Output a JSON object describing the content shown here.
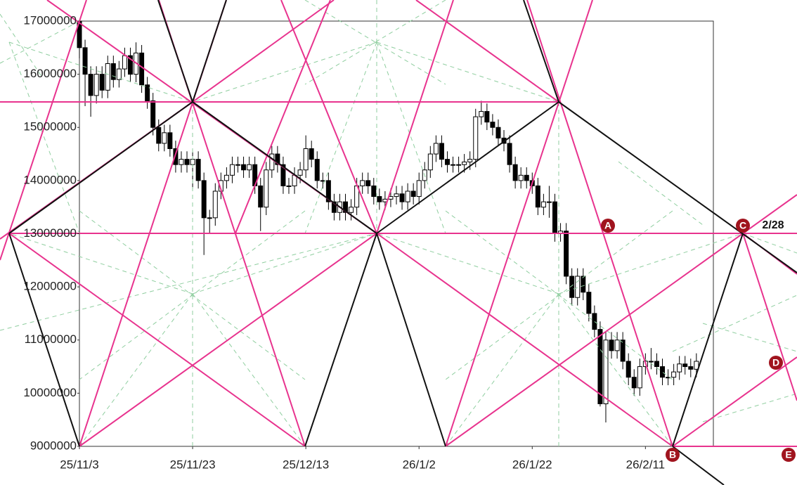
{
  "chart_data": {
    "type": "candlestick",
    "x": [
      "25/11/3",
      "25/11/4",
      "25/11/5",
      "25/11/6",
      "25/11/7",
      "25/11/8",
      "25/11/9",
      "25/11/10",
      "25/11/11",
      "25/11/12",
      "25/11/13",
      "25/11/14",
      "25/11/15",
      "25/11/16",
      "25/11/17",
      "25/11/18",
      "25/11/19",
      "25/11/20",
      "25/11/21",
      "25/11/22",
      "25/11/23",
      "25/11/24",
      "25/11/25",
      "25/11/26",
      "25/11/27",
      "25/11/28",
      "25/11/29",
      "25/11/30",
      "25/12/1",
      "25/12/2",
      "25/12/3",
      "25/12/4",
      "25/12/5",
      "25/12/6",
      "25/12/7",
      "25/12/8",
      "25/12/9",
      "25/12/10",
      "25/12/11",
      "25/12/12",
      "25/12/13",
      "25/12/14",
      "25/12/15",
      "25/12/16",
      "25/12/17",
      "25/12/18",
      "25/12/19",
      "25/12/20",
      "25/12/21",
      "25/12/22",
      "25/12/23",
      "25/12/24",
      "25/12/25",
      "25/12/26",
      "25/12/27",
      "25/12/28",
      "25/12/29",
      "25/12/30",
      "25/12/31",
      "26/1/1",
      "26/1/2",
      "26/1/3",
      "26/1/4",
      "26/1/5",
      "26/1/6",
      "26/1/7",
      "26/1/8",
      "26/1/9",
      "26/1/10",
      "26/1/11",
      "26/1/12",
      "26/1/13",
      "26/1/14",
      "26/1/15",
      "26/1/16",
      "26/1/17",
      "26/1/18",
      "26/1/19",
      "26/1/20",
      "26/1/21",
      "26/1/22",
      "26/1/23",
      "26/1/24",
      "26/1/25",
      "26/1/26",
      "26/1/27",
      "26/1/28",
      "26/1/29",
      "26/1/30",
      "26/1/31",
      "26/2/1",
      "26/2/2",
      "26/2/3",
      "26/2/4",
      "26/2/5",
      "26/2/6",
      "26/2/7",
      "26/2/8",
      "26/2/9",
      "26/2/10",
      "26/2/11",
      "26/2/12",
      "26/2/13",
      "26/2/14",
      "26/2/15",
      "26/2/16",
      "26/2/17",
      "26/2/18",
      "26/2/19",
      "26/2/20"
    ],
    "series": [
      {
        "open": [
          17000000,
          16500000,
          16000000,
          15600000,
          16000000,
          15700000,
          16200000,
          15900000,
          16100000,
          16350000,
          16000000,
          16400000,
          15800000,
          15500000,
          15000000,
          14700000,
          14900000,
          14600000,
          14300000,
          14400000,
          14300000,
          14400000,
          14000000,
          13300000,
          13300000,
          13800000,
          14000000,
          14100000,
          14300000,
          14300000,
          14200000,
          14300000,
          13900000,
          13500000,
          14200000,
          14500000,
          14300000,
          13900000,
          13900000,
          14100000,
          14200000,
          14600000,
          14400000,
          14000000,
          14000000,
          13600000,
          13400000,
          13600000,
          13400000,
          13500000,
          13900000,
          14000000,
          13900000,
          13700000,
          13600000,
          13650000,
          13700000,
          13750000,
          13600000,
          13800000,
          13700000,
          14000000,
          14200000,
          14500000,
          14700000,
          14400000,
          14300000,
          14300000,
          14300000,
          14350000,
          14400000,
          15200000,
          15300000,
          15100000,
          15000000,
          14800000,
          14700000,
          14300000,
          14000000,
          14100000,
          14000000,
          13900000,
          13500000,
          13600000,
          13600000,
          13000000,
          13050000,
          12200000,
          11800000,
          12200000,
          11900000,
          11500000,
          11200000,
          9800000,
          11000000,
          10800000,
          11000000,
          10600000,
          10300000,
          10100000,
          10500000,
          10600000,
          10600000,
          10500000,
          10300000,
          10300000,
          10400000,
          10550000,
          10500000,
          10450000
        ],
        "high": [
          17000000,
          16650000,
          16150000,
          16150000,
          16150000,
          16350000,
          16350000,
          16250000,
          16500000,
          16500000,
          16600000,
          16550000,
          15950000,
          15650000,
          15150000,
          15050000,
          15050000,
          14750000,
          14550000,
          14550000,
          14550000,
          14550000,
          14150000,
          13450000,
          13950000,
          14150000,
          14250000,
          14450000,
          14450000,
          14450000,
          14450000,
          14450000,
          14050000,
          14350000,
          14650000,
          14650000,
          14450000,
          14050000,
          14250000,
          14350000,
          14850000,
          14750000,
          14550000,
          14150000,
          14150000,
          13750000,
          13750000,
          13750000,
          13650000,
          14050000,
          14150000,
          14150000,
          14050000,
          13850000,
          13800000,
          13850000,
          13900000,
          13900000,
          13950000,
          13950000,
          14150000,
          14350000,
          14650000,
          14850000,
          14850000,
          14550000,
          14450000,
          14450000,
          14500000,
          14550000,
          15350000,
          15500000,
          15450000,
          15250000,
          15150000,
          14950000,
          14850000,
          14450000,
          14250000,
          14250000,
          14150000,
          14050000,
          13750000,
          13900000,
          13750000,
          13200000,
          13200000,
          12350000,
          12350000,
          12350000,
          12050000,
          11650000,
          11350000,
          11150000,
          11150000,
          11150000,
          11150000,
          10750000,
          10450000,
          10650000,
          10750000,
          10850000,
          10750000,
          10650000,
          10450000,
          10550000,
          10700000,
          10700000,
          10650000,
          10750000
        ],
        "low": [
          16300000,
          15400000,
          15200000,
          15450000,
          15550000,
          15550000,
          15750000,
          15750000,
          15950000,
          15850000,
          15850000,
          15650000,
          15350000,
          14850000,
          14550000,
          14550000,
          14450000,
          14150000,
          14150000,
          14150000,
          13850000,
          13850000,
          12600000,
          13000000,
          13150000,
          13650000,
          13850000,
          13950000,
          14150000,
          14050000,
          14050000,
          13750000,
          13050000,
          13350000,
          14050000,
          14150000,
          13750000,
          13750000,
          13750000,
          13950000,
          14050000,
          14250000,
          13850000,
          13850000,
          13450000,
          13250000,
          13250000,
          13250000,
          13250000,
          13350000,
          13750000,
          13750000,
          13550000,
          13450000,
          13450000,
          13500000,
          13550000,
          13450000,
          13450000,
          13550000,
          13550000,
          13850000,
          14050000,
          14350000,
          14250000,
          14150000,
          14150000,
          14150000,
          14150000,
          14200000,
          14250000,
          15050000,
          14950000,
          14850000,
          14650000,
          14550000,
          14150000,
          13850000,
          13850000,
          13850000,
          13750000,
          13350000,
          13350000,
          13300000,
          12850000,
          12850000,
          12050000,
          11650000,
          11650000,
          11750000,
          11350000,
          11050000,
          9750000,
          9450000,
          10650000,
          10650000,
          10450000,
          10150000,
          9950000,
          9950000,
          10350000,
          10450000,
          10350000,
          10150000,
          10150000,
          10150000,
          10250000,
          10350000,
          10300000,
          10300000
        ],
        "close": [
          16500000,
          16000000,
          15600000,
          16000000,
          15700000,
          16200000,
          15900000,
          16100000,
          16350000,
          16000000,
          16400000,
          15800000,
          15500000,
          15000000,
          14700000,
          14900000,
          14600000,
          14300000,
          14400000,
          14300000,
          14400000,
          14000000,
          13300000,
          13300000,
          13800000,
          14000000,
          14100000,
          14300000,
          14300000,
          14200000,
          14300000,
          13900000,
          13500000,
          14200000,
          14500000,
          14300000,
          13900000,
          13900000,
          14100000,
          14200000,
          14600000,
          14400000,
          14000000,
          14000000,
          13600000,
          13400000,
          13600000,
          13400000,
          13500000,
          13900000,
          14000000,
          13900000,
          13700000,
          13600000,
          13650000,
          13700000,
          13750000,
          13600000,
          13800000,
          13700000,
          14000000,
          14200000,
          14500000,
          14700000,
          14400000,
          14300000,
          14300000,
          14300000,
          14350000,
          14400000,
          15200000,
          15300000,
          15100000,
          15000000,
          14800000,
          14700000,
          14300000,
          14000000,
          14100000,
          14000000,
          13900000,
          13500000,
          13600000,
          13600000,
          13000000,
          13050000,
          12200000,
          11800000,
          12200000,
          11900000,
          11500000,
          11200000,
          9800000,
          11000000,
          10800000,
          11000000,
          10600000,
          10300000,
          10100000,
          10500000,
          10600000,
          10600000,
          10500000,
          10300000,
          10300000,
          10400000,
          10550000,
          10500000,
          10450000,
          10600000
        ],
        "up_color": "#ffffff",
        "down_color": "#000000"
      }
    ],
    "xlim": [
      "25/11/3",
      "26/2/23"
    ],
    "xticks": [
      "25/11/3",
      "25/11/23",
      "25/12/13",
      "26/1/2",
      "26/1/22",
      "26/2/11"
    ],
    "ylim": [
      9000000,
      17000000
    ],
    "yticks": [
      9000000,
      10000000,
      11000000,
      12000000,
      13000000,
      14000000,
      15000000,
      16000000,
      17000000
    ],
    "annotations": [
      "A",
      "B",
      "C",
      "2/28",
      "D",
      "E"
    ]
  }
}
